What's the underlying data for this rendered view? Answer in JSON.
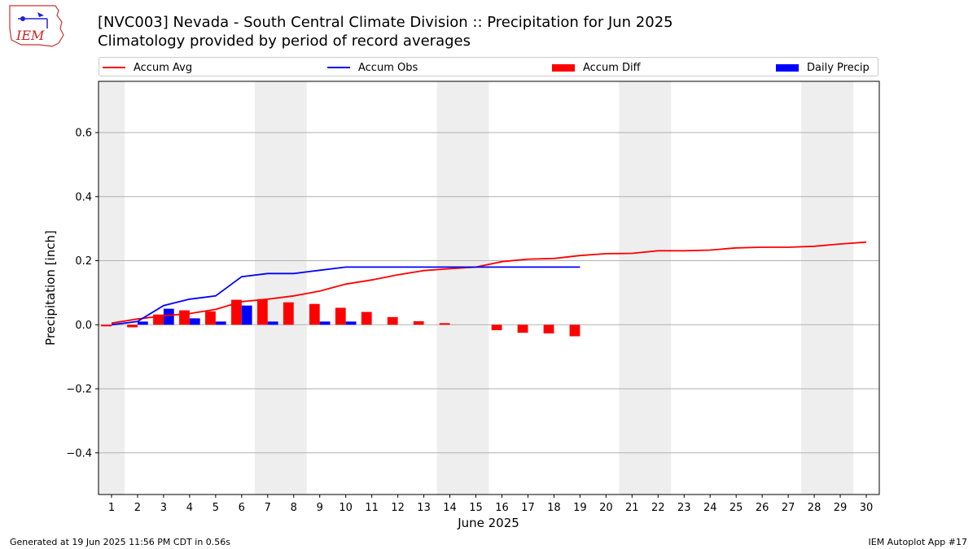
{
  "header": {
    "title_line1": "[NVC003] Nevada - South Central Climate Division :: Precipitation for Jun 2025",
    "title_line2": "Climatology provided by period of record averages",
    "logo_text": "IEM"
  },
  "footer": {
    "generated": "Generated at 19 Jun 2025 11:56 PM CDT in 0.56s",
    "app": "IEM Autoplot App #17"
  },
  "colors": {
    "avg": "#ff0000",
    "obs": "#0000ff",
    "diff": "#ff0000",
    "daily": "#0000ff",
    "weekend_shade": "#eeeeee",
    "grid": "#b0b0b0"
  },
  "chart_data": {
    "type": "bar",
    "xlabel": "June 2025",
    "ylabel": "Precipitation [inch]",
    "xlim": [
      0.5,
      30.5
    ],
    "ylim": [
      -0.53,
      0.76
    ],
    "x": [
      1,
      2,
      3,
      4,
      5,
      6,
      7,
      8,
      9,
      10,
      11,
      12,
      13,
      14,
      15,
      16,
      17,
      18,
      19,
      20,
      21,
      22,
      23,
      24,
      25,
      26,
      27,
      28,
      29,
      30
    ],
    "x_tick_labels": [
      "1",
      "2",
      "3",
      "4",
      "5",
      "6",
      "7",
      "8",
      "9",
      "10",
      "11",
      "12",
      "13",
      "14",
      "15",
      "16",
      "17",
      "18",
      "19",
      "20",
      "21",
      "22",
      "23",
      "24",
      "25",
      "26",
      "27",
      "28",
      "29",
      "30"
    ],
    "y_ticks": [
      -0.4,
      -0.2,
      0.0,
      0.2,
      0.4,
      0.6
    ],
    "y_tick_labels": [
      "−0.4",
      "−0.2",
      "0.0",
      "0.2",
      "0.4",
      "0.6"
    ],
    "grid": true,
    "legend_position": "top",
    "shaded_day_ranges": [
      [
        0.5,
        1.5
      ],
      [
        6.5,
        8.5
      ],
      [
        13.5,
        15.5
      ],
      [
        20.5,
        22.5
      ],
      [
        27.5,
        29.5
      ]
    ],
    "series": [
      {
        "name": "Accum Avg",
        "kind": "line",
        "values": [
          0.005,
          0.018,
          0.028,
          0.035,
          0.048,
          0.072,
          0.08,
          0.09,
          0.105,
          0.127,
          0.14,
          0.156,
          0.169,
          0.175,
          0.18,
          0.197,
          0.205,
          0.207,
          0.216,
          0.222,
          0.223,
          0.231,
          0.231,
          0.233,
          0.24,
          0.242,
          0.242,
          0.245,
          0.252,
          0.258
        ]
      },
      {
        "name": "Accum Obs",
        "kind": "line",
        "values": [
          0.0,
          0.01,
          0.06,
          0.08,
          0.09,
          0.15,
          0.16,
          0.16,
          0.17,
          0.18,
          0.18,
          0.18,
          0.18,
          0.18,
          0.18,
          0.18,
          0.18,
          0.18,
          0.18,
          null,
          null,
          null,
          null,
          null,
          null,
          null,
          null,
          null,
          null,
          null
        ]
      },
      {
        "name": "Accum Diff",
        "kind": "bar",
        "values": [
          -0.005,
          -0.008,
          0.032,
          0.045,
          0.042,
          0.078,
          0.08,
          0.07,
          0.065,
          0.053,
          0.04,
          0.024,
          0.011,
          0.005,
          0.0,
          -0.017,
          -0.025,
          -0.027,
          -0.036,
          null,
          null,
          null,
          null,
          null,
          null,
          null,
          null,
          null,
          null,
          null
        ]
      },
      {
        "name": "Daily Precip",
        "kind": "bar",
        "values": [
          0.0,
          0.01,
          0.05,
          0.02,
          0.01,
          0.06,
          0.01,
          0.0,
          0.01,
          0.01,
          0.0,
          0.0,
          0.0,
          0.0,
          0.0,
          0.0,
          0.0,
          0.0,
          0.0,
          null,
          null,
          null,
          null,
          null,
          null,
          null,
          null,
          null,
          null,
          null
        ]
      }
    ]
  }
}
